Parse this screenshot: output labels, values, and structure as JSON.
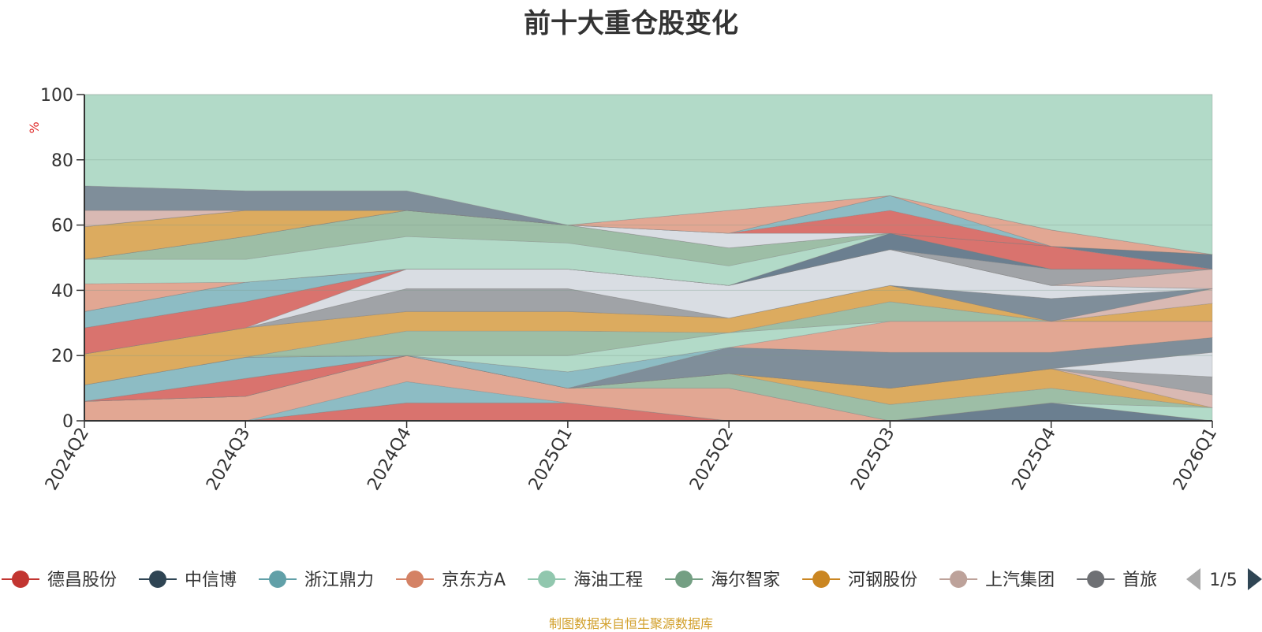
{
  "chart_data": {
    "type": "area",
    "title": "前十大重仓股变化",
    "ylabel": "%",
    "ylim": [
      0,
      100
    ],
    "yticks": [
      0,
      20,
      40,
      60,
      80,
      100
    ],
    "grid": true,
    "categories": [
      "2024Q2",
      "2024Q3",
      "2024Q4",
      "2025Q1",
      "2025Q2",
      "2025Q3",
      "2025Q4",
      "2026Q1"
    ],
    "bands": [
      {
        "name": "band-1",
        "color": "#d9736e",
        "lower": [
          0,
          0,
          0,
          0,
          0,
          0,
          0,
          0
        ],
        "upper": [
          0,
          0,
          5.5,
          5.5,
          0,
          0,
          0,
          0
        ]
      },
      {
        "name": "band-2",
        "color": "#6b7f90",
        "lower": [
          0,
          0,
          5.5,
          5.5,
          0,
          0,
          0,
          0
        ],
        "upper": [
          0,
          0,
          5.5,
          5.5,
          0,
          0,
          5.5,
          0
        ]
      },
      {
        "name": "band-3",
        "color": "#8dbcc4",
        "lower": [
          0,
          0,
          5.5,
          5.5,
          0,
          0,
          5.5,
          0
        ],
        "upper": [
          0,
          0,
          12,
          5.5,
          0,
          0,
          5.5,
          0
        ]
      },
      {
        "name": "band-4",
        "color": "#e2a793",
        "lower": [
          0,
          0,
          12,
          5.5,
          0,
          0,
          5.5,
          0
        ],
        "upper": [
          6,
          7.5,
          20,
          10,
          10,
          0,
          5.5,
          0
        ]
      },
      {
        "name": "band-5",
        "color": "#b2dac8",
        "lower": [
          6,
          7.5,
          20,
          10,
          10,
          0,
          5.5,
          0
        ],
        "upper": [
          6,
          7.5,
          20,
          10,
          10,
          0,
          5.5,
          4
        ]
      },
      {
        "name": "band-6",
        "color": "#9dbea6",
        "lower": [
          6,
          7.5,
          20,
          10,
          10,
          0,
          5.5,
          4
        ],
        "upper": [
          6,
          7.5,
          20,
          10,
          14.5,
          5,
          10,
          4
        ]
      },
      {
        "name": "band-7",
        "color": "#dcab5f",
        "lower": [
          6,
          7.5,
          20,
          10,
          14.5,
          5,
          10,
          4
        ],
        "upper": [
          6,
          7.5,
          20,
          10,
          14.5,
          10,
          16,
          4
        ]
      },
      {
        "name": "band-8",
        "color": "#d9b9b3",
        "lower": [
          6,
          7.5,
          20,
          10,
          14.5,
          10,
          16,
          4
        ],
        "upper": [
          6,
          7.5,
          20,
          10,
          14.5,
          10,
          16,
          8
        ]
      },
      {
        "name": "band-9",
        "color": "#a0a3a7",
        "lower": [
          6,
          7.5,
          20,
          10,
          14.5,
          10,
          16,
          8
        ],
        "upper": [
          6,
          7.5,
          20,
          10,
          14.5,
          10,
          16,
          13.5
        ]
      },
      {
        "name": "band-10",
        "color": "#d9dde3",
        "lower": [
          6,
          7.5,
          20,
          10,
          14.5,
          10,
          16,
          13.5
        ],
        "upper": [
          6,
          7.5,
          20,
          10,
          14.5,
          10,
          16,
          21
        ]
      },
      {
        "name": "band-11",
        "color": "#d9736e",
        "lower": [
          6,
          7.5,
          20,
          10,
          14.5,
          10,
          16,
          21
        ],
        "upper": [
          6,
          13,
          20,
          10,
          14.5,
          10,
          16,
          21
        ]
      },
      {
        "name": "band-12",
        "color": "#7f8e9a",
        "lower": [
          6,
          13,
          20,
          10,
          14.5,
          10,
          16,
          21
        ],
        "upper": [
          6,
          13,
          20,
          10,
          22.5,
          21,
          21,
          25.5
        ]
      },
      {
        "name": "band-13",
        "color": "#8dbcc4",
        "lower": [
          6,
          13,
          20,
          10,
          22.5,
          21,
          21,
          25.5
        ],
        "upper": [
          11,
          19.5,
          20,
          15,
          22.5,
          21,
          21,
          25.5
        ]
      },
      {
        "name": "band-14",
        "color": "#e2a793",
        "lower": [
          11,
          19.5,
          20,
          15,
          22.5,
          21,
          21,
          25.5
        ],
        "upper": [
          11,
          19.5,
          20,
          15,
          22.5,
          30.5,
          30.5,
          30.5
        ]
      },
      {
        "name": "band-15",
        "color": "#b2dac8",
        "lower": [
          11,
          19.5,
          20,
          15,
          22.5,
          30.5,
          30.5,
          30.5
        ],
        "upper": [
          11,
          19.5,
          20,
          20,
          27,
          30.5,
          30.5,
          30.5
        ]
      },
      {
        "name": "band-16",
        "color": "#9dbea6",
        "lower": [
          11,
          19.5,
          20,
          20,
          27,
          30.5,
          30.5,
          30.5
        ],
        "upper": [
          11,
          19.5,
          27.5,
          27.5,
          27,
          36.5,
          30.5,
          30.5
        ]
      },
      {
        "name": "band-17",
        "color": "#dcab5f",
        "lower": [
          11,
          19.5,
          27.5,
          27.5,
          27,
          36.5,
          30.5,
          30.5
        ],
        "upper": [
          20.5,
          28.5,
          33.5,
          33.5,
          31.5,
          41.5,
          30.5,
          36
        ]
      },
      {
        "name": "band-18",
        "color": "#d9b9b3",
        "lower": [
          20.5,
          28.5,
          33.5,
          33.5,
          31.5,
          41.5,
          30.5,
          36
        ],
        "upper": [
          20.5,
          28.5,
          33.5,
          33.5,
          31.5,
          41.5,
          30.5,
          40.5
        ]
      },
      {
        "name": "band-19",
        "color": "#a0a3a7",
        "lower": [
          20.5,
          28.5,
          33.5,
          33.5,
          31.5,
          41.5,
          30.5,
          40.5
        ],
        "upper": [
          20.5,
          28.5,
          40.5,
          40.5,
          31.5,
          41.5,
          30.5,
          40.5
        ]
      },
      {
        "name": "band-20",
        "color": "#7f8e9a",
        "lower": [
          20.5,
          28.5,
          40.5,
          40.5,
          31.5,
          41.5,
          30.5,
          40.5
        ],
        "upper": [
          20.5,
          28.5,
          40.5,
          40.5,
          31.5,
          41.5,
          37.5,
          40.5
        ]
      },
      {
        "name": "band-21",
        "color": "#d9dde3",
        "lower": [
          20.5,
          28.5,
          40.5,
          40.5,
          31.5,
          41.5,
          37.5,
          40.5
        ],
        "upper": [
          20.5,
          28.5,
          46.5,
          46.5,
          41.5,
          52.5,
          41.5,
          40.5
        ]
      },
      {
        "name": "band-22",
        "color": "#d9736e",
        "lower": [
          20.5,
          28.5,
          46.5,
          46.5,
          41.5,
          52.5,
          41.5,
          40.5
        ],
        "upper": [
          28.5,
          36.5,
          46.5,
          46.5,
          41.5,
          52.5,
          41.5,
          40.5
        ]
      },
      {
        "name": "band-23",
        "color": "#d9b9b3",
        "lower": [
          28.5,
          36.5,
          46.5,
          46.5,
          41.5,
          52.5,
          41.5,
          40.5
        ],
        "upper": [
          28.5,
          36.5,
          46.5,
          46.5,
          41.5,
          52.5,
          41.5,
          46.5
        ]
      },
      {
        "name": "band-24",
        "color": "#8dbcc4",
        "lower": [
          28.5,
          36.5,
          46.5,
          46.5,
          41.5,
          52.5,
          41.5,
          46.5
        ],
        "upper": [
          33.5,
          42.5,
          46.5,
          46.5,
          41.5,
          52.5,
          41.5,
          46.5
        ]
      },
      {
        "name": "band-25",
        "color": "#a0a3a7",
        "lower": [
          33.5,
          42.5,
          46.5,
          46.5,
          41.5,
          52.5,
          41.5,
          46.5
        ],
        "upper": [
          33.5,
          42.5,
          46.5,
          46.5,
          41.5,
          52.5,
          46.5,
          46.5
        ]
      },
      {
        "name": "band-26",
        "color": "#6b7f90",
        "lower": [
          33.5,
          42.5,
          46.5,
          46.5,
          41.5,
          52.5,
          46.5,
          46.5
        ],
        "upper": [
          33.5,
          42.5,
          46.5,
          46.5,
          41.5,
          57.5,
          46.5,
          46.5
        ]
      },
      {
        "name": "band-27",
        "color": "#e2a793",
        "lower": [
          33.5,
          42.5,
          46.5,
          46.5,
          41.5,
          57.5,
          46.5,
          46.5
        ],
        "upper": [
          42,
          42.5,
          46.5,
          46.5,
          41.5,
          57.5,
          46.5,
          46.5
        ]
      },
      {
        "name": "band-28",
        "color": "#b2dac8",
        "lower": [
          42,
          42.5,
          46.5,
          46.5,
          41.5,
          57.5,
          46.5,
          46.5
        ],
        "upper": [
          49.5,
          49.5,
          56.5,
          54.5,
          47.5,
          57.5,
          46.5,
          46.5
        ]
      },
      {
        "name": "band-29",
        "color": "#9dbea6",
        "lower": [
          49.5,
          49.5,
          56.5,
          54.5,
          47.5,
          57.5,
          46.5,
          46.5
        ],
        "upper": [
          49.5,
          56.5,
          64.5,
          60,
          53,
          57.5,
          46.5,
          46.5
        ]
      },
      {
        "name": "band-30",
        "color": "#d9736e",
        "lower": [
          49.5,
          56.5,
          64.5,
          60,
          53,
          57.5,
          46.5,
          46.5
        ],
        "upper": [
          49.5,
          56.5,
          64.5,
          60,
          53,
          57.5,
          53.5,
          46.5
        ]
      },
      {
        "name": "band-31",
        "color": "#6b7f90",
        "lower": [
          49.5,
          56.5,
          64.5,
          60,
          53,
          57.5,
          53.5,
          46.5
        ],
        "upper": [
          49.5,
          56.5,
          64.5,
          60,
          53,
          57.5,
          53.5,
          51
        ]
      },
      {
        "name": "band-32",
        "color": "#d9dde3",
        "lower": [
          49.5,
          56.5,
          64.5,
          60,
          53,
          57.5,
          53.5,
          51
        ],
        "upper": [
          49.5,
          56.5,
          64.5,
          60,
          57.5,
          57.5,
          53.5,
          51
        ]
      },
      {
        "name": "band-33",
        "color": "#dcab5f",
        "lower": [
          49.5,
          56.5,
          64.5,
          60,
          57.5,
          57.5,
          53.5,
          51
        ],
        "upper": [
          59.5,
          64.5,
          64.5,
          60,
          57.5,
          57.5,
          53.5,
          51
        ]
      },
      {
        "name": "band-34",
        "color": "#d9736e",
        "lower": [
          59.5,
          64.5,
          64.5,
          60,
          57.5,
          57.5,
          53.5,
          51
        ],
        "upper": [
          59.5,
          64.5,
          64.5,
          60,
          57.5,
          64.5,
          53.5,
          51
        ]
      },
      {
        "name": "band-35",
        "color": "#8dbcc4",
        "lower": [
          59.5,
          64.5,
          64.5,
          60,
          57.5,
          64.5,
          53.5,
          51
        ],
        "upper": [
          59.5,
          64.5,
          64.5,
          60,
          57.5,
          69,
          53.5,
          51
        ]
      },
      {
        "name": "band-36",
        "color": "#d9b9b3",
        "lower": [
          59.5,
          64.5,
          64.5,
          60,
          57.5,
          69,
          53.5,
          51
        ],
        "upper": [
          64.5,
          64.5,
          64.5,
          60,
          57.5,
          69,
          53.5,
          51
        ]
      },
      {
        "name": "band-37",
        "color": "#e2a793",
        "lower": [
          64.5,
          64.5,
          64.5,
          60,
          57.5,
          69,
          53.5,
          51
        ],
        "upper": [
          64.5,
          64.5,
          64.5,
          60,
          64.5,
          69,
          58.5,
          51
        ]
      },
      {
        "name": "band-38",
        "color": "#7f8e9a",
        "lower": [
          64.5,
          64.5,
          64.5,
          60,
          64.5,
          69,
          58.5,
          51
        ],
        "upper": [
          72,
          70.5,
          70.5,
          60,
          64.5,
          69,
          58.5,
          51
        ]
      },
      {
        "name": "band-39",
        "color": "#b2dac8",
        "lower": [
          72,
          70.5,
          70.5,
          60,
          64.5,
          69,
          58.5,
          51
        ],
        "upper": [
          100,
          100,
          100,
          100,
          100,
          100,
          100,
          100
        ]
      }
    ],
    "legend": {
      "items": [
        {
          "label": "德昌股份",
          "color": "#c23531"
        },
        {
          "label": "中信博",
          "color": "#2f4554"
        },
        {
          "label": "浙江鼎力",
          "color": "#61a0a8"
        },
        {
          "label": "京东方A",
          "color": "#d48265"
        },
        {
          "label": "海油工程",
          "color": "#91c7ae"
        },
        {
          "label": "海尔智家",
          "color": "#749f83"
        },
        {
          "label": "河钢股份",
          "color": "#ca8622"
        },
        {
          "label": "上汽集团",
          "color": "#bda29a"
        },
        {
          "label": "首旅",
          "color": "#6e7074"
        }
      ],
      "page": "1/5",
      "placement": "bottom"
    },
    "source_note": "制图数据来自恒生聚源数据库"
  }
}
